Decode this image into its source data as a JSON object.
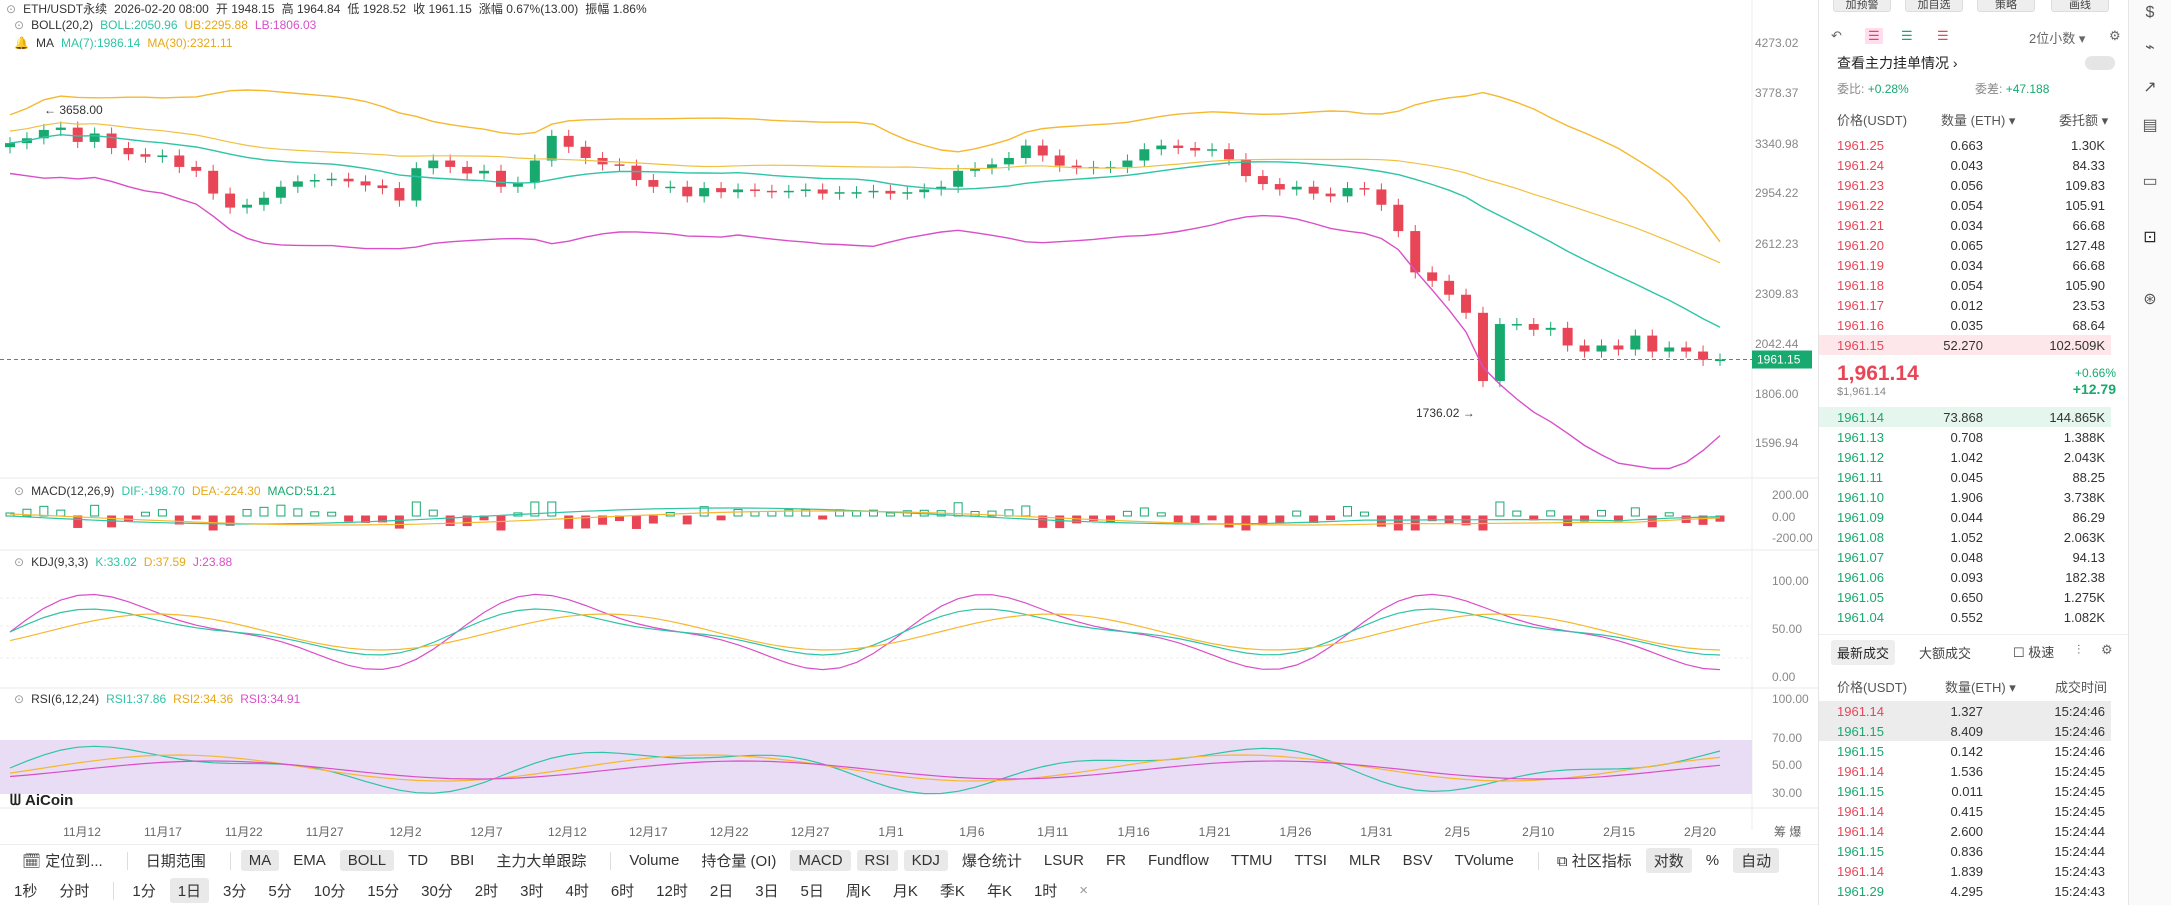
{
  "header": {
    "symbol": "ETH/USDT永续",
    "datetime": "2026-02-20 08:00",
    "open_label": "开",
    "open": "1948.15",
    "high_label": "高",
    "high": "1964.84",
    "low_label": "低",
    "low": "1928.52",
    "close_label": "收",
    "close": "1961.15",
    "change_label": "涨幅",
    "change": "0.67%(13.00)",
    "amp_label": "振幅",
    "amp": "1.86%"
  },
  "boll": {
    "label": "BOLL(20,2)",
    "mid": "BOLL:2050.96",
    "ub": "UB:2295.88",
    "lb": "LB:1806.03"
  },
  "ma": {
    "label": "MA",
    "ma7": "MA(7):1986.14",
    "ma30": "MA(30):2321.11"
  },
  "price_axis": [
    "4273.02",
    "3778.37",
    "3340.98",
    "2954.22",
    "2612.23",
    "2309.83",
    "2042.44",
    "1806.00",
    "1596.94"
  ],
  "current_price_tag": "1961.15",
  "high_marker": "← 3658.00",
  "low_marker": "1736.02 →",
  "macd": {
    "label": "MACD(12,26,9)",
    "dif": "DIF:-198.70",
    "dea": "DEA:-224.30",
    "macd": "MACD:51.21",
    "axis": [
      "200.00",
      "0.00",
      "-200.00"
    ]
  },
  "kdj": {
    "label": "KDJ(9,3,3)",
    "k": "K:33.02",
    "d": "D:37.59",
    "j": "J:23.88",
    "axis": [
      "100.00",
      "50.00",
      "0.00"
    ]
  },
  "rsi": {
    "label": "RSI(6,12,24)",
    "r1": "RSI1:37.86",
    "r2": "RSI2:34.36",
    "r3": "RSI3:34.91",
    "axis": [
      "100.00",
      "70.00",
      "50.00",
      "30.00"
    ]
  },
  "date_axis": [
    "11月12",
    "11月17",
    "11月22",
    "11月27",
    "12月2",
    "12月7",
    "12月12",
    "12月17",
    "12月22",
    "12月27",
    "1月1",
    "1月6",
    "1月11",
    "1月16",
    "1月21",
    "1月26",
    "1月31",
    "2月5",
    "2月10",
    "2月15",
    "2月20"
  ],
  "date_axis_right": "筹 爆",
  "logo": "AiCoin",
  "toolbar": {
    "items": [
      "定位到...",
      "日期范围",
      "MA",
      "EMA",
      "BOLL",
      "TD",
      "BBI",
      "主力大单跟踪",
      "Volume",
      "持仓量 (OI)",
      "MACD",
      "RSI",
      "KDJ",
      "爆仓统计",
      "LSUR",
      "FR",
      "Fundflow",
      "TTMU",
      "TTSI",
      "MLR",
      "BSV",
      "TVolume",
      "社区指标",
      "对数",
      "%",
      "自动"
    ]
  },
  "timeframes": [
    "1秒",
    "分时",
    "1分",
    "1日",
    "3分",
    "5分",
    "10分",
    "15分",
    "30分",
    "2时",
    "3时",
    "4时",
    "6时",
    "12时",
    "2日",
    "3日",
    "5日",
    "周K",
    "月K",
    "季K",
    "年K",
    "1时"
  ],
  "orderbook": {
    "top_buttons": [
      "加预警",
      "加自选",
      "策略",
      "画线"
    ],
    "precision": "2位小数",
    "title": "查看主力挂单情况",
    "ratio_label": "委比:",
    "ratio": "+0.28%",
    "diff_label": "委差:",
    "diff": "+47.188",
    "col_price": "价格(USDT)",
    "col_qty": "数量 (ETH)",
    "col_total": "委托额",
    "asks": [
      [
        "1961.25",
        "0.663",
        "1.30K"
      ],
      [
        "1961.24",
        "0.043",
        "84.33"
      ],
      [
        "1961.23",
        "0.056",
        "109.83"
      ],
      [
        "1961.22",
        "0.054",
        "105.91"
      ],
      [
        "1961.21",
        "0.034",
        "66.68"
      ],
      [
        "1961.20",
        "0.065",
        "127.48"
      ],
      [
        "1961.19",
        "0.034",
        "66.68"
      ],
      [
        "1961.18",
        "0.054",
        "105.90"
      ],
      [
        "1961.17",
        "0.012",
        "23.53"
      ],
      [
        "1961.16",
        "0.035",
        "68.64"
      ],
      [
        "1961.15",
        "52.270",
        "102.509K"
      ]
    ],
    "last_price": "1,961.14",
    "last_price_usd": "$1,961.14",
    "last_change_pct": "+0.66%",
    "last_change": "+12.79",
    "bids": [
      [
        "1961.14",
        "73.868",
        "144.865K"
      ],
      [
        "1961.13",
        "0.708",
        "1.388K"
      ],
      [
        "1961.12",
        "1.042",
        "2.043K"
      ],
      [
        "1961.11",
        "0.045",
        "88.25"
      ],
      [
        "1961.10",
        "1.906",
        "3.738K"
      ],
      [
        "1961.09",
        "0.044",
        "86.29"
      ],
      [
        "1961.08",
        "1.052",
        "2.063K"
      ],
      [
        "1961.07",
        "0.048",
        "94.13"
      ],
      [
        "1961.06",
        "0.093",
        "182.38"
      ],
      [
        "1961.05",
        "0.650",
        "1.275K"
      ],
      [
        "1961.04",
        "0.552",
        "1.082K"
      ]
    ]
  },
  "trades": {
    "tab_latest": "最新成交",
    "tab_large": "大额成交",
    "fast_label": "极速",
    "col_price": "价格(USDT)",
    "col_qty": "数量(ETH)",
    "col_time": "成交时间",
    "rows": [
      [
        "1961.14",
        "1.327",
        "15:24:46",
        "red"
      ],
      [
        "1961.15",
        "8.409",
        "15:24:46",
        "green"
      ],
      [
        "1961.15",
        "0.142",
        "15:24:46",
        "green"
      ],
      [
        "1961.14",
        "1.536",
        "15:24:45",
        "red"
      ],
      [
        "1961.15",
        "0.011",
        "15:24:45",
        "green"
      ],
      [
        "1961.14",
        "0.415",
        "15:24:45",
        "red"
      ],
      [
        "1961.14",
        "2.600",
        "15:24:44",
        "red"
      ],
      [
        "1961.15",
        "0.836",
        "15:24:44",
        "green"
      ],
      [
        "1961.14",
        "1.839",
        "15:24:43",
        "red"
      ],
      [
        "1961.29",
        "4.295",
        "15:24:43",
        "green"
      ]
    ]
  },
  "colors": {
    "up": "#18a96f",
    "down": "#e84656",
    "boll_mid": "#2ec4a5",
    "boll_ub": "#f5b82e",
    "boll_lb": "#d94fc8",
    "rsi_band": "#e9dcf5"
  }
}
